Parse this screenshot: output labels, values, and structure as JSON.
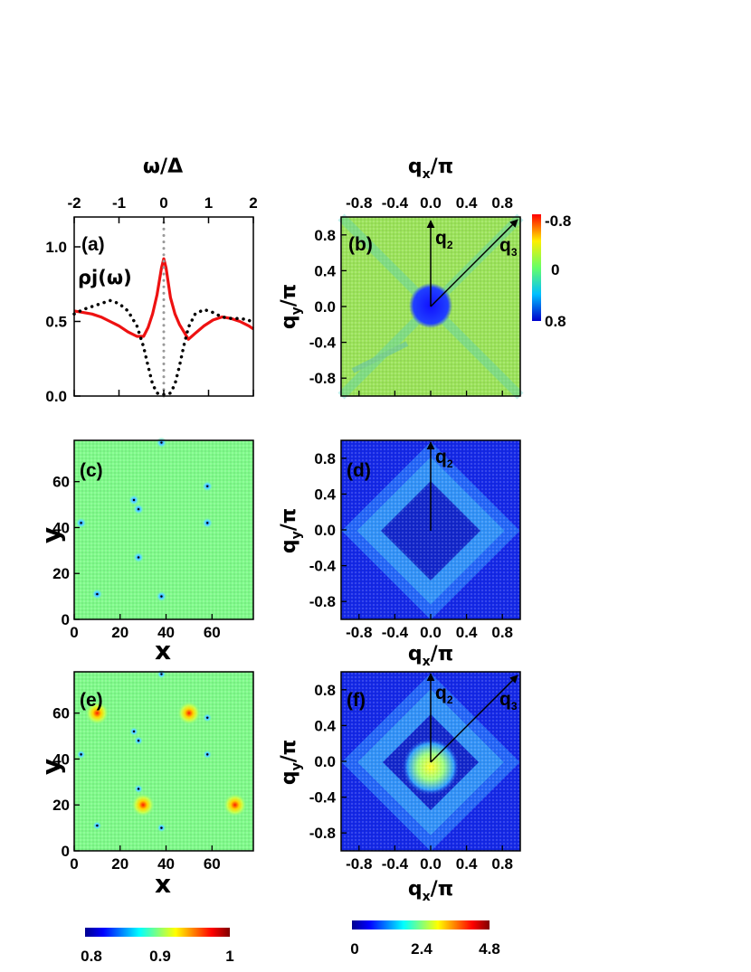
{
  "chart_data": [
    {
      "panel": "a",
      "type": "line",
      "panel_label": "(a)",
      "annotation": "ρj(ω)",
      "xlabel": "ω/Δ",
      "xlim": [
        -2,
        2
      ],
      "ylim": [
        0,
        1.2
      ],
      "xticks": [
        "-2",
        "-1",
        "0",
        "1",
        "2"
      ],
      "yticks": [
        "0.0",
        "0.5",
        "1.0"
      ],
      "series": [
        {
          "style": "solid",
          "color": "#ee1111",
          "x": [
            -2.0,
            -1.8,
            -1.6,
            -1.4,
            -1.2,
            -1.0,
            -0.8,
            -0.6,
            -0.45,
            -0.35,
            -0.25,
            -0.15,
            -0.05,
            0.0,
            0.05,
            0.15,
            0.25,
            0.35,
            0.45,
            0.55,
            0.7,
            0.9,
            1.1,
            1.3,
            1.5,
            1.7,
            1.9,
            2.0
          ],
          "y": [
            0.57,
            0.56,
            0.55,
            0.53,
            0.5,
            0.47,
            0.43,
            0.4,
            0.4,
            0.46,
            0.55,
            0.68,
            0.86,
            0.92,
            0.86,
            0.66,
            0.55,
            0.48,
            0.43,
            0.38,
            0.42,
            0.47,
            0.51,
            0.53,
            0.52,
            0.5,
            0.47,
            0.45
          ]
        },
        {
          "style": "dotted",
          "color": "#000000",
          "x": [
            -2.0,
            -1.8,
            -1.6,
            -1.4,
            -1.2,
            -1.0,
            -0.8,
            -0.6,
            -0.45,
            -0.35,
            -0.25,
            -0.15,
            -0.05,
            0.0,
            0.05,
            0.15,
            0.25,
            0.35,
            0.45,
            0.55,
            0.7,
            0.9,
            1.1,
            1.3,
            1.5,
            1.7,
            1.9,
            2.0
          ],
          "y": [
            0.55,
            0.58,
            0.6,
            0.62,
            0.64,
            0.62,
            0.57,
            0.47,
            0.33,
            0.2,
            0.08,
            0.02,
            0.01,
            0.01,
            0.01,
            0.02,
            0.08,
            0.2,
            0.34,
            0.46,
            0.55,
            0.58,
            0.56,
            0.53,
            0.52,
            0.52,
            0.51,
            0.48
          ]
        },
        {
          "style": "dotted",
          "color": "#999999",
          "x": [
            0,
            0
          ],
          "y": [
            0,
            1.2
          ]
        }
      ]
    },
    {
      "panel": "b",
      "type": "heatmap",
      "panel_label": "(b)",
      "xlabel": "qx/π",
      "ylabel": "qy/π",
      "xlim": [
        -1,
        1
      ],
      "ylim": [
        -1,
        1
      ],
      "xticks": [
        "-0.8",
        "-0.4",
        "0.0",
        "0.4",
        "0.8"
      ],
      "yticks": [
        "0.8",
        "0.4",
        "0.0",
        "-0.4",
        "-0.8"
      ],
      "vectors": [
        {
          "label": "q2",
          "to": [
            0,
            1
          ]
        },
        {
          "label": "q3",
          "to": [
            1,
            1
          ]
        }
      ],
      "colorbar": {
        "ticks": [
          "-0.8",
          "0",
          "0.8"
        ],
        "range": [
          -0.8,
          0.8
        ]
      }
    },
    {
      "panel": "c",
      "type": "heatmap",
      "panel_label": "(c)",
      "xlabel": "x",
      "ylabel": "y",
      "xlim": [
        0,
        78
      ],
      "ylim": [
        0,
        78
      ],
      "xticks": [
        "0",
        "20",
        "40",
        "60"
      ],
      "yticks": [
        "0",
        "20",
        "40",
        "60"
      ],
      "impurities": [
        [
          10,
          11
        ],
        [
          38,
          10
        ],
        [
          28,
          27
        ],
        [
          58,
          42
        ],
        [
          26,
          52
        ],
        [
          28,
          48
        ],
        [
          58,
          58
        ],
        [
          3,
          42
        ],
        [
          38,
          77
        ]
      ]
    },
    {
      "panel": "d",
      "type": "heatmap",
      "panel_label": "(d)",
      "xlabel": "qx/π",
      "ylabel": "qy/π",
      "xlim": [
        -1,
        1
      ],
      "ylim": [
        -1,
        1
      ],
      "xticks": [
        "-0.8",
        "-0.4",
        "0.0",
        "0.4",
        "0.8"
      ],
      "yticks": [
        "0.8",
        "0.4",
        "0.0",
        "-0.4",
        "-0.8"
      ],
      "vectors": [
        {
          "label": "q2",
          "to": [
            0,
            1
          ]
        }
      ]
    },
    {
      "panel": "e",
      "type": "heatmap",
      "panel_label": "(e)",
      "xlabel": "x",
      "ylabel": "y",
      "xlim": [
        0,
        78
      ],
      "ylim": [
        0,
        78
      ],
      "xticks": [
        "0",
        "20",
        "40",
        "60"
      ],
      "yticks": [
        "0",
        "20",
        "40",
        "60"
      ],
      "vortices": [
        [
          10,
          60
        ],
        [
          50,
          60
        ],
        [
          30,
          20
        ],
        [
          70,
          20
        ]
      ],
      "colorbar": {
        "ticks": [
          "0.8",
          "0.9",
          "1"
        ],
        "range": [
          0.8,
          1.0
        ]
      }
    },
    {
      "panel": "f",
      "type": "heatmap",
      "panel_label": "(f)",
      "xlabel": "qx/π",
      "ylabel": "qy/π",
      "xlim": [
        -1,
        1
      ],
      "ylim": [
        -1,
        1
      ],
      "xticks": [
        "-0.8",
        "-0.4",
        "0.0",
        "0.4",
        "0.8"
      ],
      "yticks": [
        "0.8",
        "0.4",
        "0.0",
        "-0.4",
        "-0.8"
      ],
      "vectors": [
        {
          "label": "q2",
          "to": [
            0,
            1
          ]
        },
        {
          "label": "q3",
          "to": [
            1,
            1
          ]
        }
      ],
      "colorbar": {
        "ticks": [
          "0",
          "2.4",
          "4.8"
        ],
        "range": [
          0,
          4.8
        ]
      }
    }
  ]
}
